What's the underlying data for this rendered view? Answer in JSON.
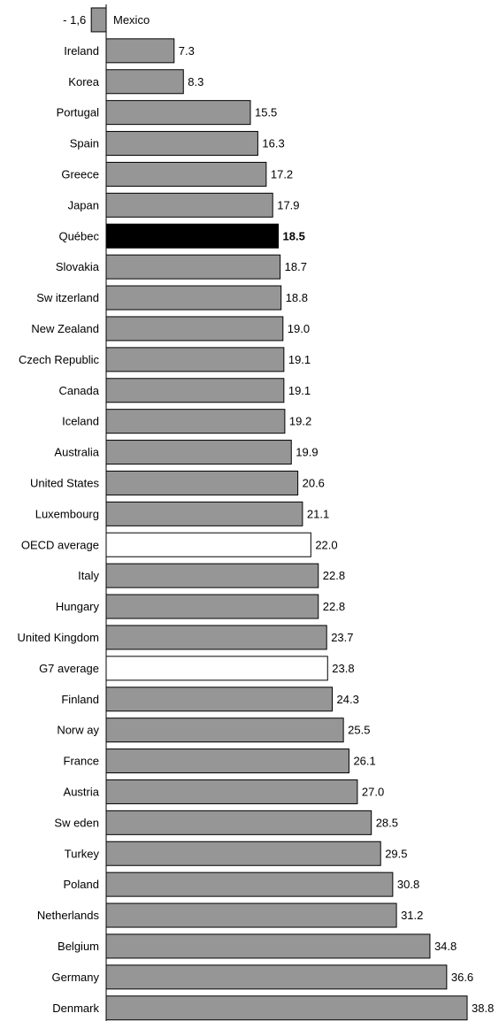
{
  "chart_data": {
    "type": "bar",
    "orientation": "horizontal",
    "title": "",
    "xlabel": "",
    "ylabel": "",
    "xlim": [
      0,
      38.8
    ],
    "grid": false,
    "legend": "none",
    "categories": [
      "Mexico",
      "Ireland",
      "Korea",
      "Portugal",
      "Spain",
      "Greece",
      "Japan",
      "Québec",
      "Slovakia",
      "Sw itzerland",
      "New Zealand",
      "Czech Republic",
      "Canada",
      "Iceland",
      "Australia",
      "United States",
      "Luxembourg",
      "OECD average",
      "Italy",
      "Hungary",
      "United Kingdom",
      "G7 average",
      "Finland",
      "Norw ay",
      "France",
      "Austria",
      "Sw eden",
      "Turkey",
      "Poland",
      "Netherlands",
      "Belgium",
      "Germany",
      "Denmark"
    ],
    "values": [
      -1.6,
      7.3,
      8.3,
      15.5,
      16.3,
      17.2,
      17.9,
      18.5,
      18.7,
      18.8,
      19.0,
      19.1,
      19.1,
      19.2,
      19.9,
      20.6,
      21.1,
      22.0,
      22.8,
      22.8,
      23.7,
      23.8,
      24.3,
      25.5,
      26.1,
      27.0,
      28.5,
      29.5,
      30.8,
      31.2,
      34.8,
      36.6,
      38.8
    ],
    "value_labels": [
      "- 1,6",
      "7.3",
      "8.3",
      "15.5",
      "16.3",
      "17.2",
      "17.9",
      "18.5",
      "18.7",
      "18.8",
      "19.0",
      "19.1",
      "19.1",
      "19.2",
      "19.9",
      "20.6",
      "21.1",
      "22.0",
      "22.8",
      "22.8",
      "23.7",
      "23.8",
      "24.3",
      "25.5",
      "26.1",
      "27.0",
      "28.5",
      "29.5",
      "30.8",
      "31.2",
      "34.8",
      "36.6",
      "38.8"
    ],
    "bar_styles": [
      "gray",
      "gray",
      "gray",
      "gray",
      "gray",
      "gray",
      "gray",
      "black",
      "gray",
      "gray",
      "gray",
      "gray",
      "gray",
      "gray",
      "gray",
      "gray",
      "gray",
      "white",
      "gray",
      "gray",
      "gray",
      "white",
      "gray",
      "gray",
      "gray",
      "gray",
      "gray",
      "gray",
      "gray",
      "gray",
      "gray",
      "gray",
      "gray"
    ],
    "colors": {
      "gray": "#969696",
      "black": "#000000",
      "white": "#ffffff",
      "outline": "#000000"
    }
  }
}
